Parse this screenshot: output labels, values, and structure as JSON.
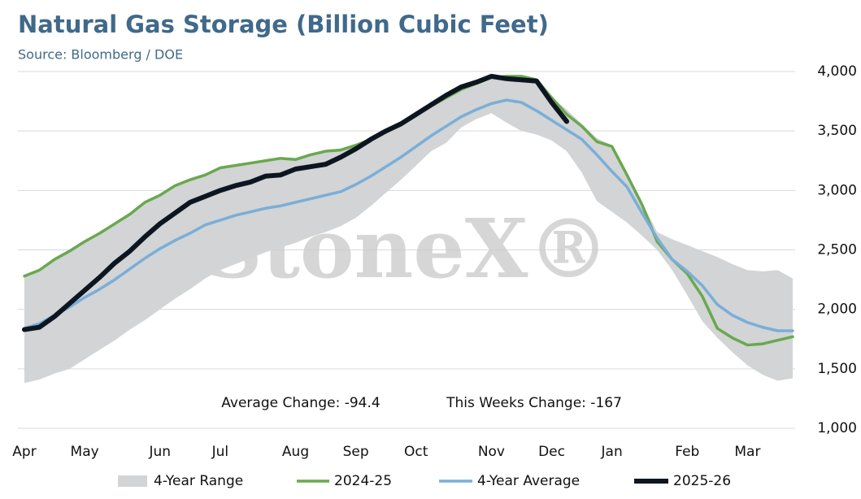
{
  "chart_data": {
    "type": "line",
    "title": "Natural Gas Storage (Billion Cubic Feet)",
    "subtitle": "Source: Bloomberg / DOE",
    "watermark": "StoneX®",
    "annotations": [
      "Average Change: -94.4",
      "This Weeks Change: -167"
    ],
    "categories": [
      "Apr",
      null,
      null,
      null,
      "May",
      null,
      null,
      null,
      null,
      "Jun",
      null,
      null,
      null,
      "Jul",
      null,
      null,
      null,
      null,
      "Aug",
      null,
      null,
      null,
      "Sep",
      null,
      null,
      null,
      "Oct",
      null,
      null,
      null,
      null,
      "Nov",
      null,
      null,
      null,
      "Dec",
      null,
      null,
      null,
      "Jan",
      null,
      null,
      null,
      null,
      "Feb",
      null,
      null,
      null,
      "Mar",
      null,
      null,
      null
    ],
    "range": {
      "name": "4-Year Range",
      "color": "#d2d4d5",
      "low": [
        1380,
        1410,
        1460,
        1500,
        1580,
        1660,
        1740,
        1830,
        1910,
        2000,
        2090,
        2170,
        2260,
        2330,
        2380,
        2430,
        2480,
        2520,
        2560,
        2610,
        2650,
        2700,
        2770,
        2870,
        2980,
        3090,
        3210,
        3330,
        3400,
        3530,
        3600,
        3650,
        3570,
        3500,
        3470,
        3420,
        3330,
        3150,
        2910,
        2820,
        2730,
        2620,
        2500,
        2330,
        2120,
        1900,
        1760,
        1640,
        1530,
        1450,
        1400,
        1420
      ],
      "high": [
        2280,
        2330,
        2420,
        2490,
        2570,
        2640,
        2720,
        2800,
        2900,
        2960,
        3040,
        3090,
        3130,
        3190,
        3210,
        3230,
        3250,
        3270,
        3270,
        3300,
        3330,
        3340,
        3380,
        3430,
        3500,
        3560,
        3640,
        3720,
        3800,
        3870,
        3910,
        3960,
        3960,
        3960,
        3930,
        3780,
        3680,
        3560,
        3440,
        3380,
        3150,
        2900,
        2650,
        2590,
        2540,
        2490,
        2440,
        2380,
        2330,
        2320,
        2330,
        2260
      ]
    },
    "series": [
      {
        "name": "2024-25",
        "color": "#6aa84f",
        "width": 3.5,
        "values": [
          2280,
          2330,
          2420,
          2490,
          2570,
          2640,
          2720,
          2800,
          2900,
          2960,
          3040,
          3090,
          3130,
          3190,
          3210,
          3230,
          3250,
          3270,
          3260,
          3300,
          3330,
          3340,
          3380,
          3430,
          3490,
          3560,
          3630,
          3710,
          3780,
          3850,
          3900,
          3950,
          3960,
          3960,
          3930,
          3780,
          3640,
          3540,
          3410,
          3370,
          3130,
          2880,
          2570,
          2420,
          2300,
          2110,
          1840,
          1760,
          1700,
          1710,
          1740,
          1770
        ]
      },
      {
        "name": "4-Year Average",
        "color": "#7aaed8",
        "width": 3.5,
        "values": [
          1840,
          1880,
          1950,
          2020,
          2100,
          2170,
          2250,
          2340,
          2430,
          2510,
          2580,
          2640,
          2710,
          2750,
          2790,
          2820,
          2850,
          2870,
          2900,
          2930,
          2960,
          2990,
          3050,
          3120,
          3200,
          3280,
          3370,
          3460,
          3540,
          3620,
          3680,
          3730,
          3760,
          3740,
          3670,
          3590,
          3510,
          3430,
          3300,
          3160,
          3030,
          2810,
          2600,
          2420,
          2320,
          2200,
          2040,
          1950,
          1890,
          1850,
          1820,
          1820
        ]
      },
      {
        "name": "2025-26",
        "color": "#0d1620",
        "width": 6,
        "values": [
          1830,
          1850,
          1940,
          2050,
          2160,
          2270,
          2390,
          2490,
          2610,
          2720,
          2810,
          2900,
          2950,
          3000,
          3040,
          3070,
          3120,
          3130,
          3180,
          3200,
          3220,
          3280,
          3350,
          3430,
          3500,
          3560,
          3640,
          3720,
          3800,
          3870,
          3910,
          3960,
          3940,
          3930,
          3920,
          3740,
          3580,
          null,
          null,
          null,
          null,
          null,
          null,
          null,
          null,
          null,
          null,
          null,
          null,
          null,
          null,
          null
        ]
      }
    ],
    "ylim": [
      1000,
      4000
    ],
    "yticks": [
      {
        "value": 1000,
        "label": "1,000"
      },
      {
        "value": 1500,
        "label": "1,500"
      },
      {
        "value": 2000,
        "label": "2,000"
      },
      {
        "value": 2500,
        "label": "2,500"
      },
      {
        "value": 3000,
        "label": "3,000"
      },
      {
        "value": 3500,
        "label": "3,500"
      },
      {
        "value": 4000,
        "label": "4,000"
      }
    ],
    "grid": true,
    "legend": "bottom"
  }
}
